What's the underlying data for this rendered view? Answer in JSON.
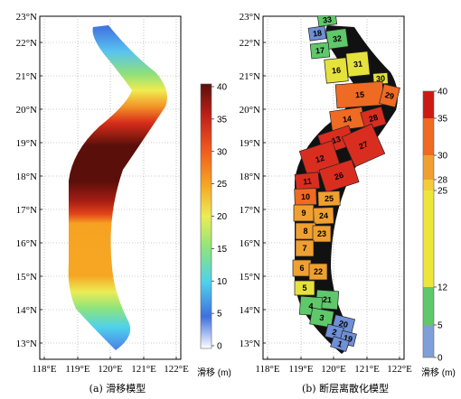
{
  "panels": [
    {
      "caption": "(a) 滑移模型",
      "y_ticks": [
        "23°N",
        "22°N",
        "21°N",
        "20°N",
        "19°N",
        "18°N",
        "17°N",
        "16°N",
        "15°N",
        "14°N",
        "13°N"
      ],
      "x_ticks": [
        "118°E",
        "119°E",
        "120°E",
        "121°E",
        "122°E"
      ],
      "colorbar": {
        "ticks": [
          "40",
          "35",
          "30",
          "25",
          "20",
          "15",
          "10",
          "5",
          "0"
        ],
        "unit": "滑移 (m)"
      }
    },
    {
      "caption": "(b) 断层离散化模型",
      "y_ticks": [
        "23°N",
        "22°N",
        "21°N",
        "20°N",
        "19°N",
        "18°N",
        "17°N",
        "16°N",
        "15°N",
        "14°N",
        "13°N"
      ],
      "x_ticks": [
        "118°E",
        "119°E",
        "120°E",
        "121°E",
        "122°E"
      ],
      "colorbar": {
        "ticks": [
          "40",
          "35",
          "30",
          "28",
          "25",
          "12",
          "5",
          "0"
        ],
        "unit": "滑移 (m)"
      }
    }
  ],
  "segments": [
    {
      "id": "33",
      "color": "#5fc86a"
    },
    {
      "id": "18",
      "color": "#6f8fd6"
    },
    {
      "id": "32",
      "color": "#5fc86a"
    },
    {
      "id": "17",
      "color": "#5fc86a"
    },
    {
      "id": "31",
      "color": "#e6e23c"
    },
    {
      "id": "16",
      "color": "#e6e23c"
    },
    {
      "id": "30",
      "color": "#e6e23c"
    },
    {
      "id": "15",
      "color": "#ef6a22"
    },
    {
      "id": "29",
      "color": "#ef6a22"
    },
    {
      "id": "14",
      "color": "#ef6a22"
    },
    {
      "id": "28",
      "color": "#d92d20"
    },
    {
      "id": "13",
      "color": "#d92d20"
    },
    {
      "id": "27",
      "color": "#d92d20"
    },
    {
      "id": "12",
      "color": "#d92d20"
    },
    {
      "id": "26",
      "color": "#d92d20"
    },
    {
      "id": "11",
      "color": "#d92d20"
    },
    {
      "id": "10",
      "color": "#ef6a22"
    },
    {
      "id": "25",
      "color": "#f0a030"
    },
    {
      "id": "9",
      "color": "#f0a030"
    },
    {
      "id": "24",
      "color": "#f0a030"
    },
    {
      "id": "8",
      "color": "#f0a030"
    },
    {
      "id": "23",
      "color": "#f0a030"
    },
    {
      "id": "7",
      "color": "#f0a030"
    },
    {
      "id": "6",
      "color": "#f0a030"
    },
    {
      "id": "22",
      "color": "#f0a030"
    },
    {
      "id": "5",
      "color": "#e6e23c"
    },
    {
      "id": "21",
      "color": "#5fc86a"
    },
    {
      "id": "4",
      "color": "#5fc86a"
    },
    {
      "id": "3",
      "color": "#5fc86a"
    },
    {
      "id": "20",
      "color": "#6f8fd6"
    },
    {
      "id": "2",
      "color": "#6f8fd6"
    },
    {
      "id": "19",
      "color": "#6f8fd6"
    },
    {
      "id": "1",
      "color": "#6f8fd6"
    }
  ]
}
